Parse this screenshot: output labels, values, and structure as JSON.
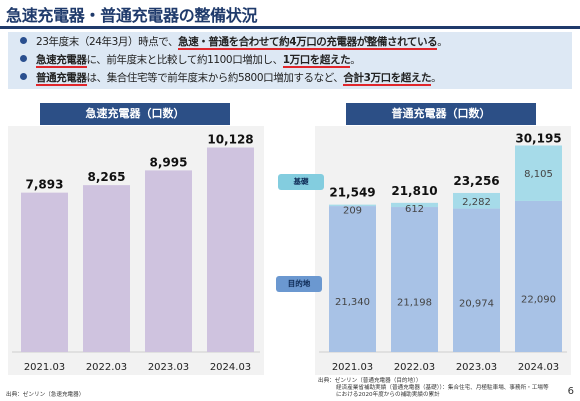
{
  "page": {
    "title": "急速充電器・普通充電器の整備状況",
    "page_number": "6"
  },
  "summary": {
    "b1_a": "23年度末（24年3月）時点で、",
    "b1_b": "急速・普通を合わせて約4万口の充電器が整備されている",
    "b1_c": "。",
    "b2_a": "急速充電器",
    "b2_b": "に、前年度末と比較して約1100口増加し、",
    "b2_c": "1万口を超えた",
    "b2_d": "。",
    "b3_a": "普通充電器",
    "b3_b": "は、集合住宅等で前年度末から約5800口増加するなど、",
    "b3_c": "合計3万口を超えた",
    "b3_d": "。"
  },
  "quick_panel": {
    "header": "急速充電器（口数）",
    "source": "出典：ゼンリン（急速充電器）"
  },
  "normal_panel": {
    "header": "普通充電器（口数）",
    "tag_basic": "基礎",
    "tag_dest": "目的地",
    "source_l1": "出典：ゼンリン（普通充電器（目的地））",
    "source_l2": "経済産業省補助実績（普通充電器（基礎））：集合住宅、月極駐車場、事務所・工場等",
    "source_l3": "における2020年度からの補助実績の累計"
  },
  "chart_data": [
    {
      "type": "bar",
      "title": "急速充電器（口数）",
      "categories": [
        "2021.03",
        "2022.03",
        "2023.03",
        "2024.03"
      ],
      "values": [
        7893,
        8265,
        8995,
        10128
      ],
      "value_labels": [
        "7,893",
        "8,265",
        "8,995",
        "10,128"
      ],
      "color": "#cfc3df"
    },
    {
      "type": "bar",
      "stacked": true,
      "title": "普通充電器（口数）",
      "categories": [
        "2021.03",
        "2022.03",
        "2023.03",
        "2024.03"
      ],
      "series": [
        {
          "name": "目的地",
          "values": [
            21340,
            21198,
            20974,
            22090
          ],
          "labels": [
            "21,340",
            "21,198",
            "20,974",
            "22,090"
          ],
          "color": "#a8c2e6"
        },
        {
          "name": "基礎",
          "values": [
            209,
            612,
            2282,
            8105
          ],
          "labels": [
            "209",
            "612",
            "2,282",
            "8,105"
          ],
          "color": "#a6dbe9"
        }
      ],
      "totals": [
        21549,
        21810,
        23256,
        30195
      ],
      "total_labels": [
        "21,549",
        "21,810",
        "23,256",
        "30,195"
      ]
    }
  ]
}
